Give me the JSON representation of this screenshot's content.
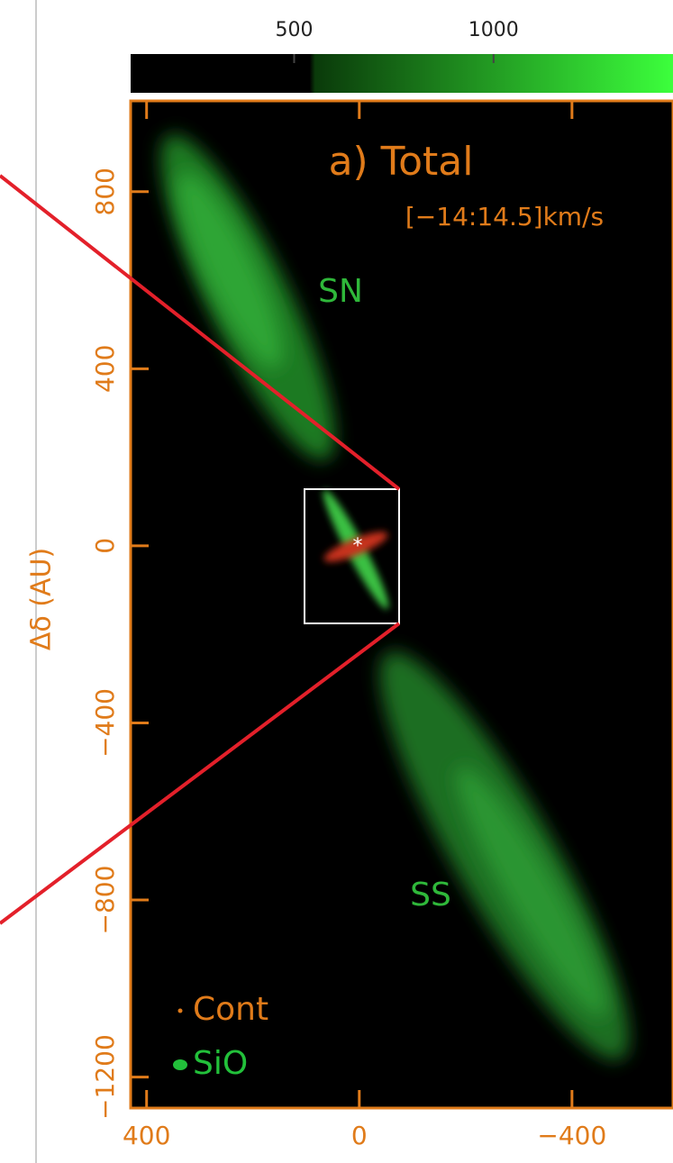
{
  "chart_data": {
    "type": "image",
    "title": "a) Total",
    "subtitle": "[−14:14.5]km/s",
    "ylabel": "Δδ (AU)",
    "annotations": [
      "SN",
      "SS"
    ],
    "legend": [
      {
        "name": "Cont",
        "color": "#e07b1a"
      },
      {
        "name": "SiO",
        "color": "#22c03a"
      }
    ],
    "xlim": [
      430,
      -590
    ],
    "xticks": [
      400,
      0,
      {
        "value": -400,
        "label": "−400"
      }
    ],
    "ylim": [
      -1270,
      1005
    ],
    "yticks": [
      {
        "value": -1200,
        "label": "−1200"
      },
      {
        "value": -800,
        "label": "−800"
      },
      {
        "value": -400,
        "label": "−400"
      },
      0,
      400,
      800
    ],
    "colorbar": {
      "lim": [
        90,
        1450
      ],
      "ticks": [
        500,
        1000
      ]
    }
  }
}
